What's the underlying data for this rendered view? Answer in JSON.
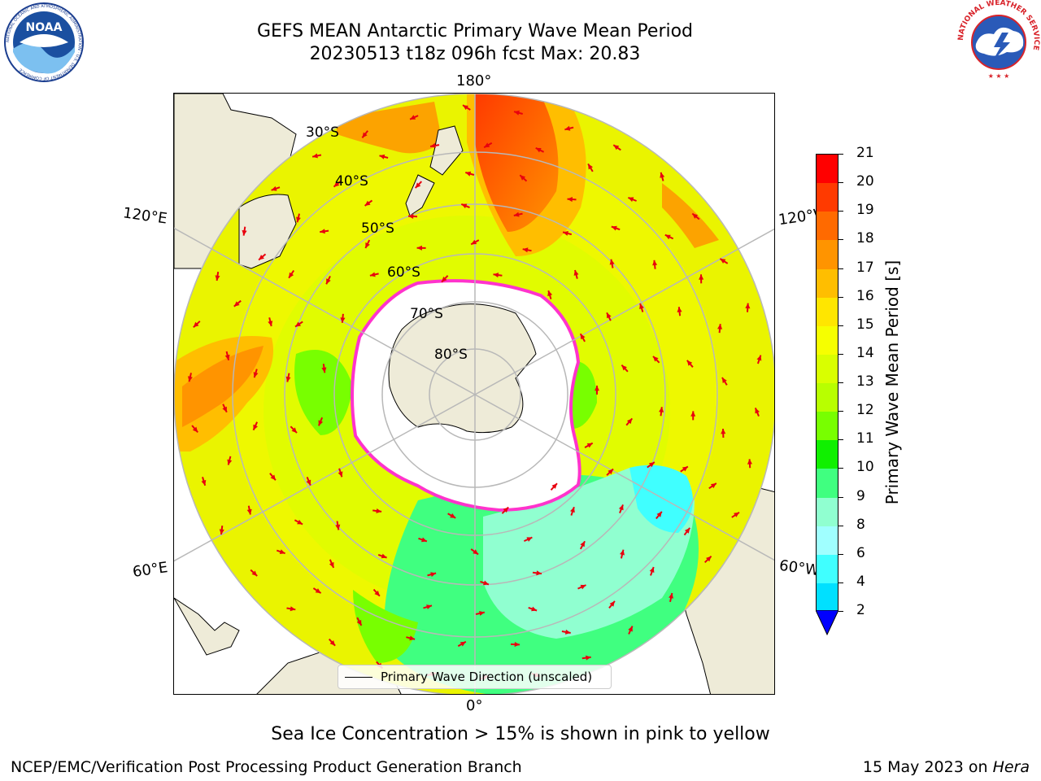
{
  "header": {
    "title_line1": "GEFS MEAN Antarctic Primary Wave Mean Period",
    "title_line2": "20230513 t18z 096h fcst   Max: 20.83"
  },
  "logos": {
    "left": "NOAA",
    "left_ring": "NATIONAL OCEANIC AND ATMOSPHERIC ADMINISTRATION · U.S. DEPARTMENT OF COMMERCE",
    "right_ring": "NATIONAL WEATHER SERVICE"
  },
  "map": {
    "projection": "south-polar-stereographic",
    "lon_labels": {
      "top": "180°",
      "bottom": "0°",
      "upper_left": "120°E",
      "upper_right": "120°W",
      "lower_left": "60°E",
      "lower_right": "60°W"
    },
    "lat_labels": [
      "30°S",
      "40°S",
      "50°S",
      "60°S",
      "70°S",
      "80°S"
    ],
    "colors": {
      "land": "#eeebd8",
      "ice_edge": "#ff33cc",
      "arrow": "#e8000e"
    }
  },
  "colorbar": {
    "label": "Primary Wave Mean Period [s]",
    "ticks": [
      "21",
      "20",
      "19",
      "18",
      "17",
      "16",
      "15",
      "14",
      "13",
      "12",
      "11",
      "10",
      "9",
      "8",
      "6",
      "4",
      "2"
    ],
    "colors": [
      "#ff0000",
      "#ff3a00",
      "#ff6a00",
      "#ff9400",
      "#ffbe00",
      "#ffe600",
      "#f6ff00",
      "#d9ff00",
      "#b8ff00",
      "#78ff00",
      "#10f000",
      "#40ff80",
      "#90ffd0",
      "#a0ffff",
      "#40ffff",
      "#00e0ff",
      "#0064ff"
    ],
    "extend_color": "#0000ff"
  },
  "legend": {
    "label": "Primary Wave Direction (unscaled)"
  },
  "footer": {
    "note": "Sea Ice Concentration > 15% is shown in pink to yellow",
    "credit": "NCEP/EMC/Verification Post Processing Product Generation Branch",
    "date_prefix": "15 May 2023 on",
    "host": "Hera"
  }
}
